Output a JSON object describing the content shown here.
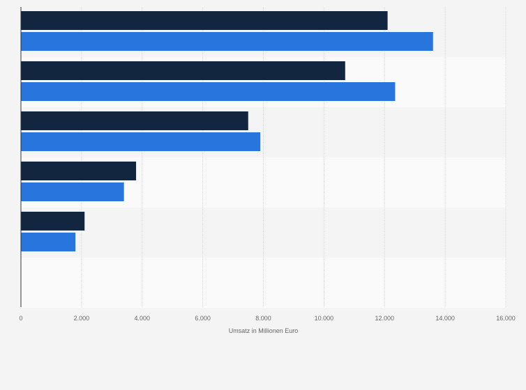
{
  "chart_data": {
    "type": "bar",
    "orientation": "horizontal",
    "title": "",
    "xlabel": "Umsatz in Millionen Euro",
    "ylabel": "",
    "xlim": [
      0,
      16000
    ],
    "x_ticks": [
      0,
      2000,
      4000,
      6000,
      8000,
      10000,
      12000,
      14000,
      16000
    ],
    "x_tick_labels": [
      "0",
      "2.000",
      "4.000",
      "6.000",
      "8.000",
      "10.000",
      "12.000",
      "14.000",
      "16.000"
    ],
    "grid": true,
    "legend": "none",
    "categories": [
      "",
      "",
      "",
      "",
      "",
      ""
    ],
    "series": [
      {
        "color": "#12263f",
        "values": [
          12100,
          10700,
          7500,
          3800,
          2100,
          null
        ]
      },
      {
        "color": "#2876dd",
        "values": [
          13600,
          12350,
          7900,
          3400,
          1800,
          null
        ]
      }
    ]
  },
  "colors": {
    "page_background": "#f4f4f4",
    "band_odd": "#f4f4f4",
    "band_even": "#fafafa",
    "gridline": "#d8d8d8",
    "axis_line": "#333333",
    "label_text": "#666666"
  }
}
